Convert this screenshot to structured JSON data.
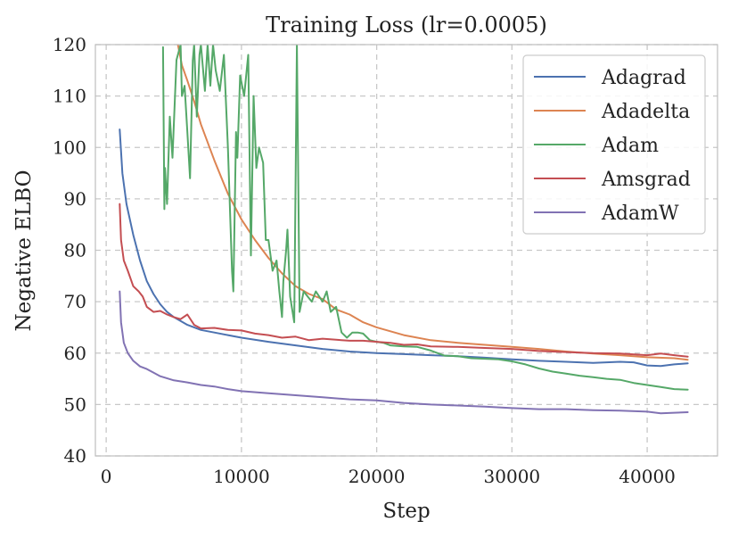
{
  "chart_data": {
    "type": "line",
    "title": "Training Loss (lr=0.0005)",
    "xlabel": "Step",
    "ylabel": "Negative ELBO",
    "xlim": [
      -800,
      45200
    ],
    "ylim": [
      40,
      120
    ],
    "xticks": [
      0,
      10000,
      20000,
      30000,
      40000
    ],
    "xtick_labels": [
      "0",
      "10000",
      "20000",
      "30000",
      "40000"
    ],
    "yticks": [
      40,
      50,
      60,
      70,
      80,
      90,
      100,
      110,
      120
    ],
    "ytick_labels": [
      "40",
      "50",
      "60",
      "70",
      "80",
      "90",
      "100",
      "110",
      "120"
    ],
    "grid": true,
    "legend_position": "top-right",
    "series": [
      {
        "name": "Adagrad",
        "color": "#4c72b0",
        "x": [
          1000,
          1200,
          1500,
          2000,
          2500,
          3000,
          3500,
          4000,
          4500,
          5000,
          6000,
          7000,
          8000,
          9000,
          10000,
          12000,
          14000,
          16000,
          18000,
          20000,
          22000,
          24000,
          26000,
          28000,
          30000,
          32000,
          34000,
          36000,
          38000,
          39000,
          40000,
          41000,
          42000,
          43000
        ],
        "y": [
          103.5,
          95,
          89,
          83,
          78,
          74,
          71.5,
          69.5,
          68,
          67,
          65.5,
          64.5,
          64,
          63.5,
          63,
          62.2,
          61.5,
          60.8,
          60.3,
          60.0,
          59.8,
          59.6,
          59.4,
          59.1,
          58.8,
          58.5,
          58.3,
          58.1,
          58.3,
          58.2,
          57.6,
          57.5,
          57.8,
          58.0
        ]
      },
      {
        "name": "Adadelta",
        "color": "#dd8452",
        "x": [
          5300,
          5600,
          6000,
          6500,
          7000,
          8000,
          9000,
          10000,
          11000,
          12000,
          13000,
          14000,
          15000,
          16000,
          17000,
          18000,
          19000,
          20000,
          22000,
          24000,
          26000,
          28000,
          30000,
          32000,
          34000,
          36000,
          38000,
          40000,
          42000,
          43000
        ],
        "y": [
          120,
          116,
          113,
          109,
          104.5,
          97.5,
          91,
          86,
          82,
          78.5,
          75.5,
          73,
          71.5,
          70.5,
          68.5,
          67.5,
          66,
          65,
          63.5,
          62.5,
          62,
          61.6,
          61.2,
          60.8,
          60.3,
          59.9,
          59.6,
          59.2,
          59.0,
          58.7
        ]
      },
      {
        "name": "Adam",
        "color": "#55a868",
        "x": [
          4200,
          4300,
          4350,
          4500,
          4700,
          4900,
          5200,
          5500,
          5600,
          5800,
          6000,
          6200,
          6400,
          6500,
          6700,
          6900,
          7000,
          7300,
          7500,
          7700,
          7900,
          8100,
          8400,
          8700,
          9000,
          9300,
          9400,
          9600,
          9700,
          9900,
          10200,
          10500,
          10700,
          10900,
          11100,
          11300,
          11600,
          11800,
          12000,
          12300,
          12600,
          12800,
          13000,
          13100,
          13300,
          13400,
          13600,
          13900,
          14100,
          14300,
          14600,
          14900,
          15200,
          15500,
          16000,
          16300,
          16600,
          17000,
          17400,
          17800,
          18200,
          18600,
          19000,
          19500,
          20000,
          20500,
          21000,
          22000,
          23000,
          24000,
          25000,
          26000,
          27000,
          28000,
          29000,
          30000,
          31000,
          32000,
          33000,
          34000,
          35000,
          36000,
          37000,
          38000,
          39000,
          40000,
          41000,
          42000,
          43000
        ],
        "y": [
          119.5,
          88,
          96,
          89,
          106,
          98,
          117,
          120,
          110,
          112,
          103,
          94,
          117,
          120,
          106,
          118,
          120,
          111,
          120,
          112,
          120,
          115,
          111,
          118,
          100,
          76,
          72,
          103,
          98,
          114,
          110,
          118,
          79,
          110,
          96,
          100,
          97,
          82,
          82,
          76,
          78,
          72,
          67,
          74,
          80,
          84,
          71,
          66,
          120,
          68,
          72,
          71,
          70,
          72,
          70,
          72,
          68,
          69,
          64,
          63,
          64,
          64,
          63.8,
          62.5,
          62.2,
          62,
          61.5,
          61.3,
          61.2,
          60.5,
          59.5,
          59.4,
          59.0,
          58.9,
          58.8,
          58.4,
          57.8,
          57.0,
          56.4,
          56.0,
          55.6,
          55.3,
          55.0,
          54.8,
          54.2,
          53.8,
          53.4,
          53.0,
          52.9
        ]
      },
      {
        "name": "Amsgrad",
        "color": "#c44e52",
        "x": [
          1000,
          1100,
          1300,
          1600,
          2000,
          2400,
          2700,
          3000,
          3500,
          4000,
          4500,
          5000,
          5500,
          6000,
          6500,
          7000,
          8000,
          9000,
          10000,
          11000,
          12000,
          13000,
          14000,
          15000,
          16000,
          17000,
          18000,
          19000,
          20000,
          21000,
          22000,
          23000,
          24000,
          26000,
          28000,
          30000,
          32000,
          34000,
          36000,
          38000,
          40000,
          41000,
          42000,
          43000
        ],
        "y": [
          89,
          82,
          78,
          76,
          73,
          72,
          71,
          69,
          68,
          68.2,
          67.5,
          67.0,
          66.6,
          67.5,
          65.5,
          64.8,
          64.9,
          64.5,
          64.4,
          63.8,
          63.5,
          63.0,
          63.2,
          62.5,
          62.8,
          62.6,
          62.4,
          62.4,
          62.2,
          62.0,
          61.6,
          61.7,
          61.3,
          61.2,
          61.0,
          60.8,
          60.4,
          60.2,
          60.0,
          59.9,
          59.6,
          59.9,
          59.6,
          59.3
        ]
      },
      {
        "name": "AdamW",
        "color": "#8172b3",
        "x": [
          1000,
          1100,
          1300,
          1600,
          2000,
          2500,
          3000,
          3500,
          4000,
          5000,
          6000,
          7000,
          8000,
          9000,
          10000,
          12000,
          14000,
          16000,
          18000,
          20000,
          22000,
          24000,
          26000,
          28000,
          30000,
          32000,
          34000,
          36000,
          38000,
          40000,
          41000,
          42000,
          43000
        ],
        "y": [
          72,
          66,
          62,
          60,
          58.5,
          57.4,
          56.9,
          56.2,
          55.5,
          54.7,
          54.3,
          53.8,
          53.5,
          53.0,
          52.6,
          52.2,
          51.8,
          51.4,
          51.0,
          50.8,
          50.3,
          50.0,
          49.8,
          49.6,
          49.3,
          49.1,
          49.1,
          48.9,
          48.8,
          48.6,
          48.3,
          48.4,
          48.5
        ]
      }
    ]
  }
}
